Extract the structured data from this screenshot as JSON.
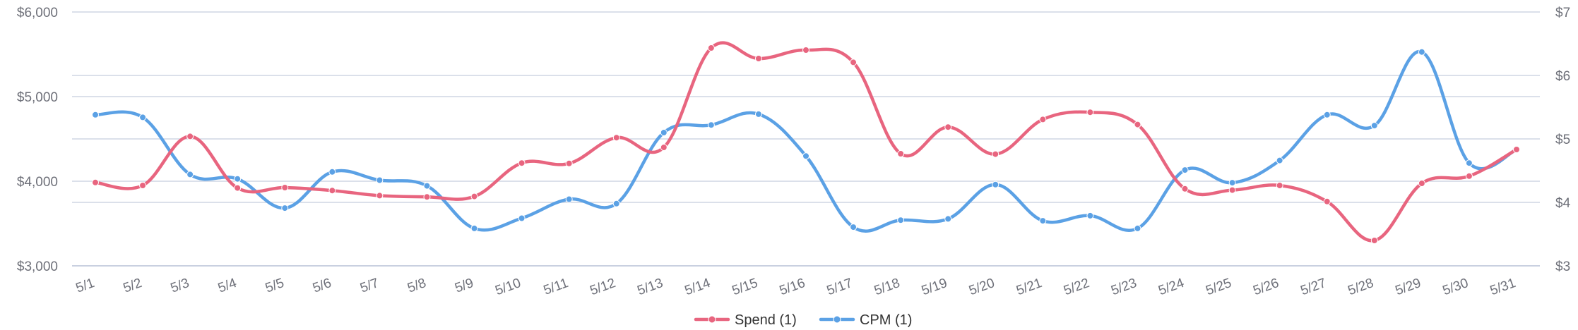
{
  "chart_data": {
    "type": "line",
    "categories": [
      "5/1",
      "5/2",
      "5/3",
      "5/4",
      "5/5",
      "5/6",
      "5/7",
      "5/8",
      "5/9",
      "5/10",
      "5/11",
      "5/12",
      "5/13",
      "5/14",
      "5/15",
      "5/16",
      "5/17",
      "5/18",
      "5/19",
      "5/20",
      "5/21",
      "5/22",
      "5/23",
      "5/24",
      "5/25",
      "5/26",
      "5/27",
      "5/28",
      "5/29",
      "5/30",
      "5/31"
    ],
    "series": [
      {
        "name": "Spend (1)",
        "axis": "left",
        "color": "#e8657f",
        "values": [
          3985,
          3950,
          4530,
          3920,
          3925,
          3890,
          3830,
          3815,
          3820,
          4215,
          4210,
          4515,
          4400,
          5575,
          5450,
          5550,
          5405,
          4325,
          4640,
          4320,
          4730,
          4815,
          4670,
          3910,
          3895,
          3950,
          3760,
          3300,
          3975,
          4060,
          4375
        ]
      },
      {
        "name": "CPM (1)",
        "axis": "right",
        "color": "#5ba1e5",
        "values": [
          5.38,
          5.34,
          4.44,
          4.37,
          3.91,
          4.48,
          4.35,
          4.26,
          3.59,
          3.75,
          4.05,
          3.98,
          5.1,
          5.22,
          5.39,
          4.73,
          3.61,
          3.72,
          3.74,
          4.28,
          3.71,
          3.79,
          3.59,
          4.51,
          4.31,
          4.66,
          5.38,
          5.21,
          6.37,
          4.62,
          4.83
        ]
      }
    ],
    "y_left": {
      "ticks": [
        "$3,000",
        "$4,000",
        "$5,000",
        "$6,000"
      ],
      "min": 3000,
      "max": 6000
    },
    "y_right": {
      "ticks": [
        "$3",
        "$4",
        "$5",
        "$6",
        "$7"
      ],
      "min": 3,
      "max": 7
    },
    "grid": true,
    "legend": "bottom-center"
  }
}
